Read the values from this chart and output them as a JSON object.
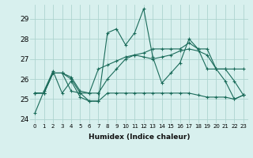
{
  "xlabel": "Humidex (Indice chaleur)",
  "background_color": "#d8f0ee",
  "grid_color": "#aed4cf",
  "line_color": "#1a6b5a",
  "xlim": [
    -0.5,
    23.5
  ],
  "ylim": [
    23.8,
    29.7
  ],
  "yticks": [
    24,
    25,
    26,
    27,
    28,
    29
  ],
  "xticks": [
    0,
    1,
    2,
    3,
    4,
    5,
    6,
    7,
    8,
    9,
    10,
    11,
    12,
    13,
    14,
    15,
    16,
    17,
    18,
    19,
    20,
    21,
    22,
    23
  ],
  "series": [
    [
      24.3,
      25.4,
      26.4,
      25.3,
      25.9,
      25.1,
      24.9,
      24.9,
      28.3,
      28.5,
      27.7,
      28.3,
      29.5,
      27.1,
      25.8,
      26.3,
      26.8,
      28.0,
      27.5,
      26.5,
      26.5,
      25.9,
      25.0,
      25.2
    ],
    [
      25.3,
      25.3,
      26.3,
      26.3,
      25.4,
      25.3,
      24.9,
      24.9,
      25.3,
      25.3,
      25.3,
      25.3,
      25.3,
      25.3,
      25.3,
      25.3,
      25.3,
      25.3,
      25.2,
      25.1,
      25.1,
      25.1,
      25.0,
      25.2
    ],
    [
      25.3,
      25.3,
      26.3,
      26.3,
      26.1,
      25.4,
      25.3,
      26.5,
      26.7,
      26.9,
      27.1,
      27.2,
      27.1,
      27.0,
      27.1,
      27.2,
      27.4,
      27.5,
      27.4,
      27.2,
      26.5,
      26.5,
      26.5,
      26.5
    ],
    [
      25.3,
      25.3,
      26.3,
      26.3,
      26.0,
      25.3,
      25.3,
      25.3,
      26.0,
      26.5,
      27.0,
      27.2,
      27.3,
      27.5,
      27.5,
      27.5,
      27.5,
      27.8,
      27.5,
      27.5,
      26.5,
      26.5,
      25.9,
      25.2
    ]
  ]
}
